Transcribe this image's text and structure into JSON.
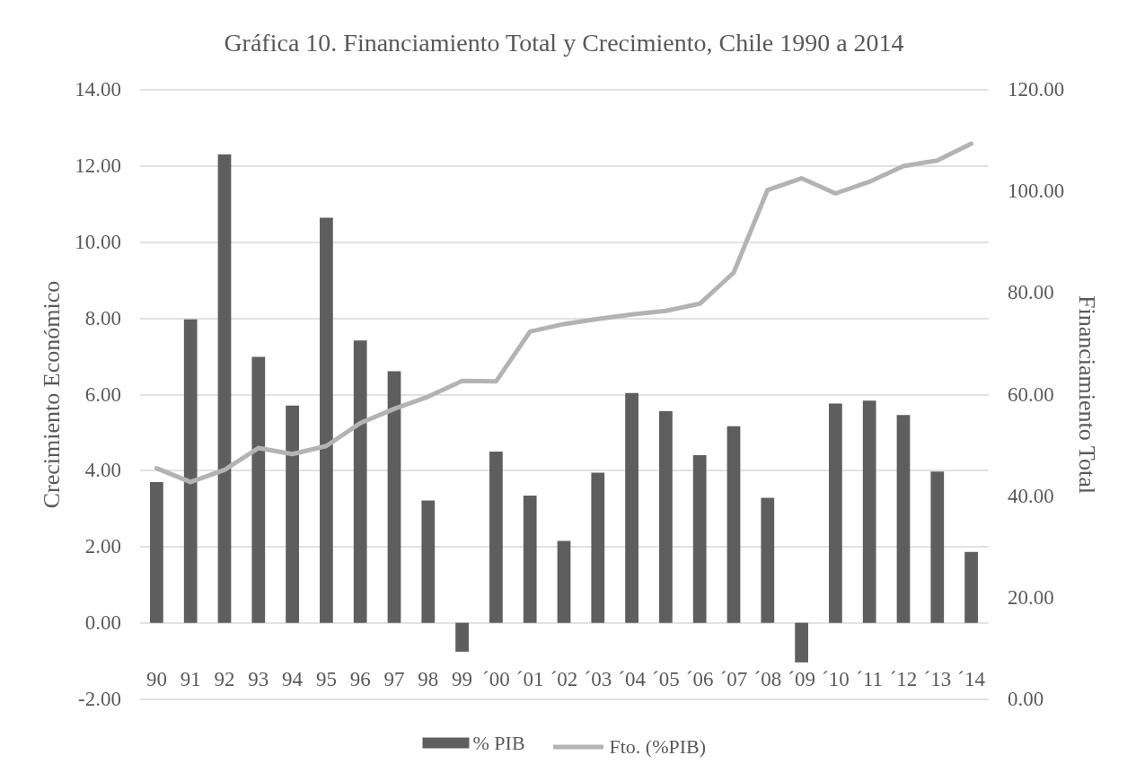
{
  "chart_data": {
    "type": "bar",
    "title": "Gráfica 10. Financiamiento Total y Crecimiento, Chile 1990 a 2014",
    "ylabel": "Crecimiento Económico",
    "y2label": "Financiamiento Total",
    "categories": [
      "90",
      "91",
      "92",
      "93",
      "94",
      "95",
      "96",
      "97",
      "98",
      "99",
      "´00",
      "´01",
      "´02",
      "´03",
      "´04",
      "´05",
      "´06",
      "´07",
      "´08",
      "´09",
      "´10",
      "´11",
      "´12",
      "´13",
      "´14"
    ],
    "series": [
      {
        "name": "% PIB",
        "color": "#5e5e5e",
        "values": [
          3.69,
          7.96,
          12.29,
          6.98,
          5.7,
          10.63,
          7.41,
          6.6,
          3.21,
          -0.76,
          4.49,
          3.34,
          2.15,
          3.94,
          6.03,
          5.55,
          4.4,
          5.16,
          3.28,
          -1.04,
          5.75,
          5.83,
          5.45,
          3.97,
          1.86
        ]
      },
      {
        "name": "Fto. (%PIB)",
        "type": "line",
        "axis": "y2",
        "color": "#b3b3b3",
        "values": [
          45.4,
          42.7,
          45.1,
          49.4,
          48.2,
          49.8,
          54.3,
          57.1,
          59.5,
          62.6,
          62.5,
          72.3,
          73.8,
          74.8,
          75.7,
          76.4,
          77.8,
          83.9,
          100.2,
          102.5,
          99.5,
          101.8,
          104.9,
          106.0,
          109.3
        ]
      }
    ],
    "ylim": [
      -2,
      14
    ],
    "yticks": [
      {
        "value": -2,
        "label": "-2.00"
      },
      {
        "value": 0,
        "label": "0.00"
      },
      {
        "value": 2,
        "label": "2.00"
      },
      {
        "value": 4,
        "label": "4.00"
      },
      {
        "value": 6,
        "label": "6.00"
      },
      {
        "value": 8,
        "label": "8.00"
      },
      {
        "value": 10,
        "label": "10.00"
      },
      {
        "value": 12,
        "label": "12.00"
      },
      {
        "value": 14,
        "label": "14.00"
      }
    ],
    "y2lim": [
      0,
      120
    ],
    "y2ticks": [
      {
        "value": 0,
        "label": "0.00"
      },
      {
        "value": 20,
        "label": "20.00"
      },
      {
        "value": 40,
        "label": "40.00"
      },
      {
        "value": 60,
        "label": "60.00"
      },
      {
        "value": 80,
        "label": "80.00"
      },
      {
        "value": 100,
        "label": "100.00"
      },
      {
        "value": 120,
        "label": "120.00"
      }
    ],
    "grid": "y",
    "legend": "bottom"
  }
}
